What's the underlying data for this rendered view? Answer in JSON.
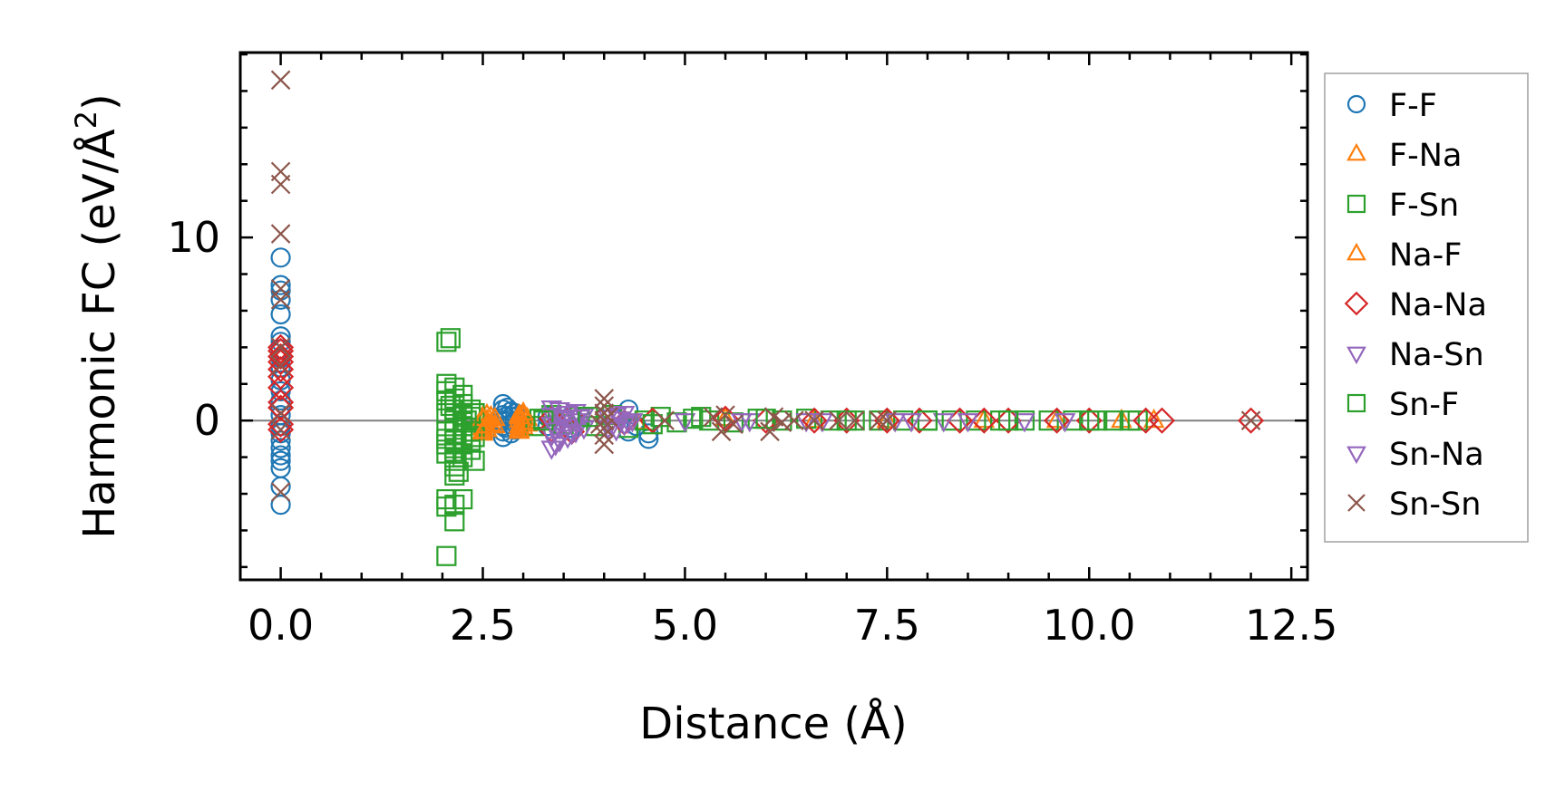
{
  "chart_data": {
    "type": "scatter",
    "xlabel": "Distance (Å)",
    "ylabel_main": "Harmonic FC (eV/Å",
    "ylabel_sup": "2",
    "ylabel_close": ")",
    "xlim": [
      -0.5,
      12.7
    ],
    "ylim": [
      -8.7,
      20.1
    ],
    "x_ticks": [
      0.0,
      2.5,
      5.0,
      7.5,
      10.0,
      12.5
    ],
    "x_tick_labels": [
      "0.0",
      "2.5",
      "5.0",
      "7.5",
      "10.0",
      "12.5"
    ],
    "y_ticks": [
      0,
      10
    ],
    "y_tick_labels": [
      "0",
      "10"
    ],
    "x_minor_step": 0.5,
    "y_minor_step": 2,
    "zero_line": true,
    "grid": false,
    "legend_position": "outside-right",
    "series": [
      {
        "name": "F-F",
        "marker": "circle",
        "color": "#1f77b4",
        "points": [
          [
            0,
            -4.6
          ],
          [
            0,
            -3.6
          ],
          [
            0,
            -2.6
          ],
          [
            0,
            -2.2
          ],
          [
            0,
            -1.9
          ],
          [
            0,
            -1.5
          ],
          [
            0,
            -1.1
          ],
          [
            0,
            -0.7
          ],
          [
            0,
            -0.3
          ],
          [
            0,
            0.3
          ],
          [
            0,
            0.7
          ],
          [
            0,
            1.1
          ],
          [
            0,
            1.6
          ],
          [
            0,
            2.2
          ],
          [
            0,
            2.9
          ],
          [
            0,
            3.4
          ],
          [
            0,
            3.9
          ],
          [
            0,
            4.3
          ],
          [
            0,
            4.6
          ],
          [
            0,
            5.8
          ],
          [
            0,
            6.6
          ],
          [
            0,
            7.1
          ],
          [
            0,
            7.4
          ],
          [
            0,
            8.9
          ],
          [
            2.75,
            -0.9
          ],
          [
            2.75,
            -0.6
          ],
          [
            2.75,
            -0.3
          ],
          [
            2.75,
            0.0
          ],
          [
            2.75,
            0.3
          ],
          [
            2.75,
            0.6
          ],
          [
            2.75,
            0.9
          ],
          [
            2.78,
            -0.4
          ],
          [
            2.78,
            0.2
          ],
          [
            2.8,
            0.7
          ],
          [
            2.85,
            -0.7
          ],
          [
            2.85,
            -0.2
          ],
          [
            2.85,
            0.2
          ],
          [
            2.85,
            0.5
          ],
          [
            2.9,
            -0.5
          ],
          [
            2.9,
            0.0
          ],
          [
            2.9,
            0.4
          ],
          [
            2.95,
            -0.3
          ],
          [
            2.95,
            0.3
          ],
          [
            3.3,
            -0.3
          ],
          [
            3.3,
            0.2
          ],
          [
            3.6,
            -0.4
          ],
          [
            3.6,
            0.3
          ],
          [
            4.3,
            -0.6
          ],
          [
            4.3,
            0.6
          ],
          [
            4.4,
            -0.3
          ],
          [
            4.55,
            -1.0
          ],
          [
            4.55,
            -0.7
          ]
        ]
      },
      {
        "name": "F-Na",
        "marker": "triangle-up",
        "color": "#ff7f0e",
        "points": [
          [
            2.5,
            -0.7
          ],
          [
            2.5,
            -0.4
          ],
          [
            2.5,
            -0.1
          ],
          [
            2.5,
            0.2
          ],
          [
            2.55,
            -0.5
          ],
          [
            2.55,
            0.0
          ],
          [
            2.55,
            0.3
          ],
          [
            2.6,
            -0.2
          ],
          [
            2.65,
            -0.3
          ],
          [
            2.65,
            0.1
          ],
          [
            2.95,
            -0.6
          ],
          [
            2.95,
            -0.3
          ],
          [
            2.95,
            0.0
          ],
          [
            2.95,
            0.3
          ],
          [
            3.0,
            -0.4
          ],
          [
            3.0,
            0.2
          ],
          [
            3.05,
            -0.2
          ],
          [
            3.05,
            0.1
          ],
          [
            4.4,
            -0.1
          ],
          [
            5.5,
            0.1
          ],
          [
            6.6,
            0.0
          ],
          [
            7.5,
            0.0
          ],
          [
            8.7,
            0.0
          ],
          [
            9.6,
            0.0
          ],
          [
            10.4,
            0.0
          ],
          [
            10.8,
            0.0
          ]
        ]
      },
      {
        "name": "F-Sn",
        "marker": "square",
        "color": "#2ca02c",
        "points": [
          [
            2.05,
            -7.4
          ],
          [
            2.05,
            -4.7
          ],
          [
            2.05,
            -4.3
          ],
          [
            2.05,
            -1.8
          ],
          [
            2.05,
            -1.3
          ],
          [
            2.05,
            -0.6
          ],
          [
            2.05,
            0.4
          ],
          [
            2.05,
            1.1
          ],
          [
            2.05,
            1.6
          ],
          [
            2.05,
            2.0
          ],
          [
            2.05,
            4.3
          ],
          [
            2.1,
            4.5
          ],
          [
            2.15,
            -5.5
          ],
          [
            2.15,
            -4.6
          ],
          [
            2.15,
            -3.0
          ],
          [
            2.15,
            -2.5
          ],
          [
            2.15,
            -2.2
          ],
          [
            2.15,
            -1.7
          ],
          [
            2.15,
            -1.1
          ],
          [
            2.15,
            -0.5
          ],
          [
            2.15,
            0.0
          ],
          [
            2.15,
            0.6
          ],
          [
            2.15,
            1.2
          ],
          [
            2.15,
            1.8
          ],
          [
            2.25,
            -4.3
          ],
          [
            2.25,
            -2.0
          ],
          [
            2.25,
            -1.3
          ],
          [
            2.25,
            -0.8
          ],
          [
            2.25,
            -0.3
          ],
          [
            2.25,
            0.3
          ],
          [
            2.25,
            0.9
          ],
          [
            2.25,
            1.4
          ],
          [
            2.35,
            -1.6
          ],
          [
            2.35,
            -1.1
          ],
          [
            2.35,
            -0.6
          ],
          [
            2.35,
            0.2
          ],
          [
            2.35,
            0.6
          ],
          [
            2.4,
            -2.2
          ],
          [
            2.4,
            -0.9
          ],
          [
            2.4,
            0.4
          ],
          [
            3.15,
            -0.3
          ],
          [
            3.2,
            0.1
          ],
          [
            3.35,
            0.3
          ],
          [
            3.5,
            -0.2
          ],
          [
            3.7,
            0.2
          ],
          [
            3.9,
            -0.3
          ],
          [
            4.1,
            0.3
          ],
          [
            4.3,
            -0.4
          ],
          [
            4.5,
            0.0
          ],
          [
            4.7,
            0.2
          ],
          [
            4.9,
            -0.1
          ],
          [
            5.1,
            0.1
          ],
          [
            5.3,
            0.0
          ],
          [
            5.6,
            -0.1
          ],
          [
            5.9,
            0.1
          ],
          [
            6.2,
            0.0
          ],
          [
            6.5,
            0.1
          ],
          [
            6.8,
            0.0
          ],
          [
            7.1,
            0.0
          ],
          [
            7.4,
            0.0
          ],
          [
            7.7,
            0.0
          ],
          [
            8.0,
            0.0
          ],
          [
            8.3,
            0.0
          ],
          [
            8.6,
            0.0
          ],
          [
            8.9,
            0.0
          ],
          [
            9.2,
            0.0
          ],
          [
            9.5,
            0.0
          ],
          [
            9.8,
            0.0
          ],
          [
            10.1,
            0.0
          ],
          [
            10.3,
            0.0
          ],
          [
            10.5,
            0.0
          ],
          [
            10.6,
            0.0
          ]
        ]
      },
      {
        "name": "Na-F",
        "marker": "triangle-up",
        "color": "#ff7f0e",
        "points": [
          [
            2.5,
            -0.6
          ],
          [
            2.5,
            0.1
          ],
          [
            2.55,
            -0.3
          ],
          [
            2.6,
            0.2
          ],
          [
            2.95,
            -0.5
          ],
          [
            2.95,
            0.2
          ],
          [
            3.0,
            -0.1
          ],
          [
            3.0,
            0.4
          ]
        ]
      },
      {
        "name": "Na-Na",
        "marker": "diamond",
        "color": "#d62728",
        "points": [
          [
            0,
            -0.5
          ],
          [
            0,
            -0.2
          ],
          [
            0,
            0.7
          ],
          [
            0,
            1.0
          ],
          [
            0,
            1.8
          ],
          [
            0,
            2.4
          ],
          [
            0,
            2.8
          ],
          [
            0,
            3.2
          ],
          [
            0,
            3.5
          ],
          [
            0,
            3.8
          ],
          [
            0,
            4.0
          ],
          [
            3.35,
            -0.5
          ],
          [
            3.35,
            0.1
          ],
          [
            3.6,
            -0.6
          ],
          [
            3.6,
            0.2
          ],
          [
            4.25,
            -0.1
          ],
          [
            4.6,
            0.0
          ],
          [
            5.5,
            0.1
          ],
          [
            6.0,
            0.0
          ],
          [
            6.6,
            0.0
          ],
          [
            7.0,
            0.0
          ],
          [
            7.5,
            0.0
          ],
          [
            7.9,
            0.0
          ],
          [
            8.4,
            0.0
          ],
          [
            8.7,
            0.0
          ],
          [
            9.0,
            0.0
          ],
          [
            9.6,
            0.0
          ],
          [
            10.0,
            0.0
          ],
          [
            10.7,
            0.0
          ],
          [
            10.9,
            0.0
          ],
          [
            12.0,
            0.0
          ]
        ]
      },
      {
        "name": "Na-Sn",
        "marker": "triangle-down",
        "color": "#9467bd",
        "points": [
          [
            3.35,
            -1.5
          ],
          [
            3.35,
            -0.8
          ],
          [
            3.35,
            -0.2
          ],
          [
            3.35,
            0.3
          ],
          [
            3.35,
            0.7
          ],
          [
            3.45,
            -1.1
          ],
          [
            3.45,
            -0.4
          ],
          [
            3.45,
            0.2
          ],
          [
            3.45,
            0.6
          ],
          [
            3.55,
            -0.9
          ],
          [
            3.55,
            -0.3
          ],
          [
            3.55,
            0.4
          ],
          [
            3.65,
            -0.6
          ],
          [
            3.65,
            0.0
          ],
          [
            3.65,
            0.5
          ],
          [
            3.75,
            -0.4
          ],
          [
            3.75,
            0.3
          ],
          [
            4.05,
            -0.4
          ],
          [
            4.05,
            0.2
          ],
          [
            4.15,
            -0.5
          ],
          [
            4.15,
            0.3
          ],
          [
            4.25,
            -0.2
          ],
          [
            4.25,
            0.4
          ],
          [
            4.35,
            0.0
          ],
          [
            5.0,
            0.0
          ],
          [
            5.8,
            0.0
          ],
          [
            6.7,
            0.0
          ],
          [
            7.6,
            0.0
          ],
          [
            8.2,
            0.0
          ],
          [
            9.2,
            0.0
          ]
        ]
      },
      {
        "name": "Sn-F",
        "marker": "square",
        "color": "#2ca02c",
        "points": [
          [
            2.05,
            -1.0
          ],
          [
            2.1,
            0.8
          ],
          [
            2.2,
            -2.8
          ],
          [
            2.3,
            0.0
          ],
          [
            3.25,
            0.0
          ],
          [
            3.8,
            0.2
          ],
          [
            4.6,
            -0.2
          ],
          [
            5.2,
            0.2
          ],
          [
            6.0,
            0.1
          ],
          [
            7.0,
            0.0
          ],
          [
            8.0,
            0.0
          ],
          [
            9.0,
            0.0
          ],
          [
            10.0,
            0.0
          ]
        ]
      },
      {
        "name": "Sn-Na",
        "marker": "triangle-down",
        "color": "#9467bd",
        "points": [
          [
            3.4,
            -1.3
          ],
          [
            3.4,
            -0.5
          ],
          [
            3.5,
            0.1
          ],
          [
            3.6,
            -0.7
          ],
          [
            3.7,
            0.2
          ],
          [
            4.1,
            -0.3
          ],
          [
            4.2,
            0.1
          ],
          [
            4.3,
            -0.1
          ],
          [
            5.7,
            0.0
          ],
          [
            6.5,
            0.0
          ],
          [
            7.8,
            0.0
          ],
          [
            8.5,
            0.0
          ],
          [
            9.7,
            0.0
          ]
        ]
      },
      {
        "name": "Sn-Sn",
        "marker": "x",
        "color": "#8c564b",
        "points": [
          [
            0,
            -3.9
          ],
          [
            0,
            -0.5
          ],
          [
            0,
            0.4
          ],
          [
            0,
            3.0
          ],
          [
            0,
            4.0
          ],
          [
            0,
            6.6
          ],
          [
            0,
            7.2
          ],
          [
            0,
            10.2
          ],
          [
            0,
            12.9
          ],
          [
            0,
            13.6
          ],
          [
            0,
            18.6
          ],
          [
            4.0,
            -1.3
          ],
          [
            4.0,
            -0.8
          ],
          [
            4.0,
            -0.4
          ],
          [
            4.0,
            0.0
          ],
          [
            4.0,
            0.4
          ],
          [
            4.0,
            0.8
          ],
          [
            4.0,
            1.2
          ],
          [
            3.95,
            -0.2
          ],
          [
            4.05,
            0.2
          ],
          [
            4.75,
            0.0
          ],
          [
            5.35,
            0.2
          ],
          [
            5.45,
            -0.6
          ],
          [
            5.5,
            0.3
          ],
          [
            5.6,
            -0.2
          ],
          [
            6.05,
            -0.6
          ],
          [
            6.1,
            0.2
          ],
          [
            6.2,
            -0.1
          ],
          [
            6.35,
            0.0
          ],
          [
            6.6,
            0.0
          ],
          [
            6.9,
            0.0
          ],
          [
            7.1,
            0.0
          ],
          [
            7.4,
            0.0
          ],
          [
            7.5,
            0.0
          ],
          [
            12.0,
            0.0
          ]
        ]
      }
    ]
  }
}
